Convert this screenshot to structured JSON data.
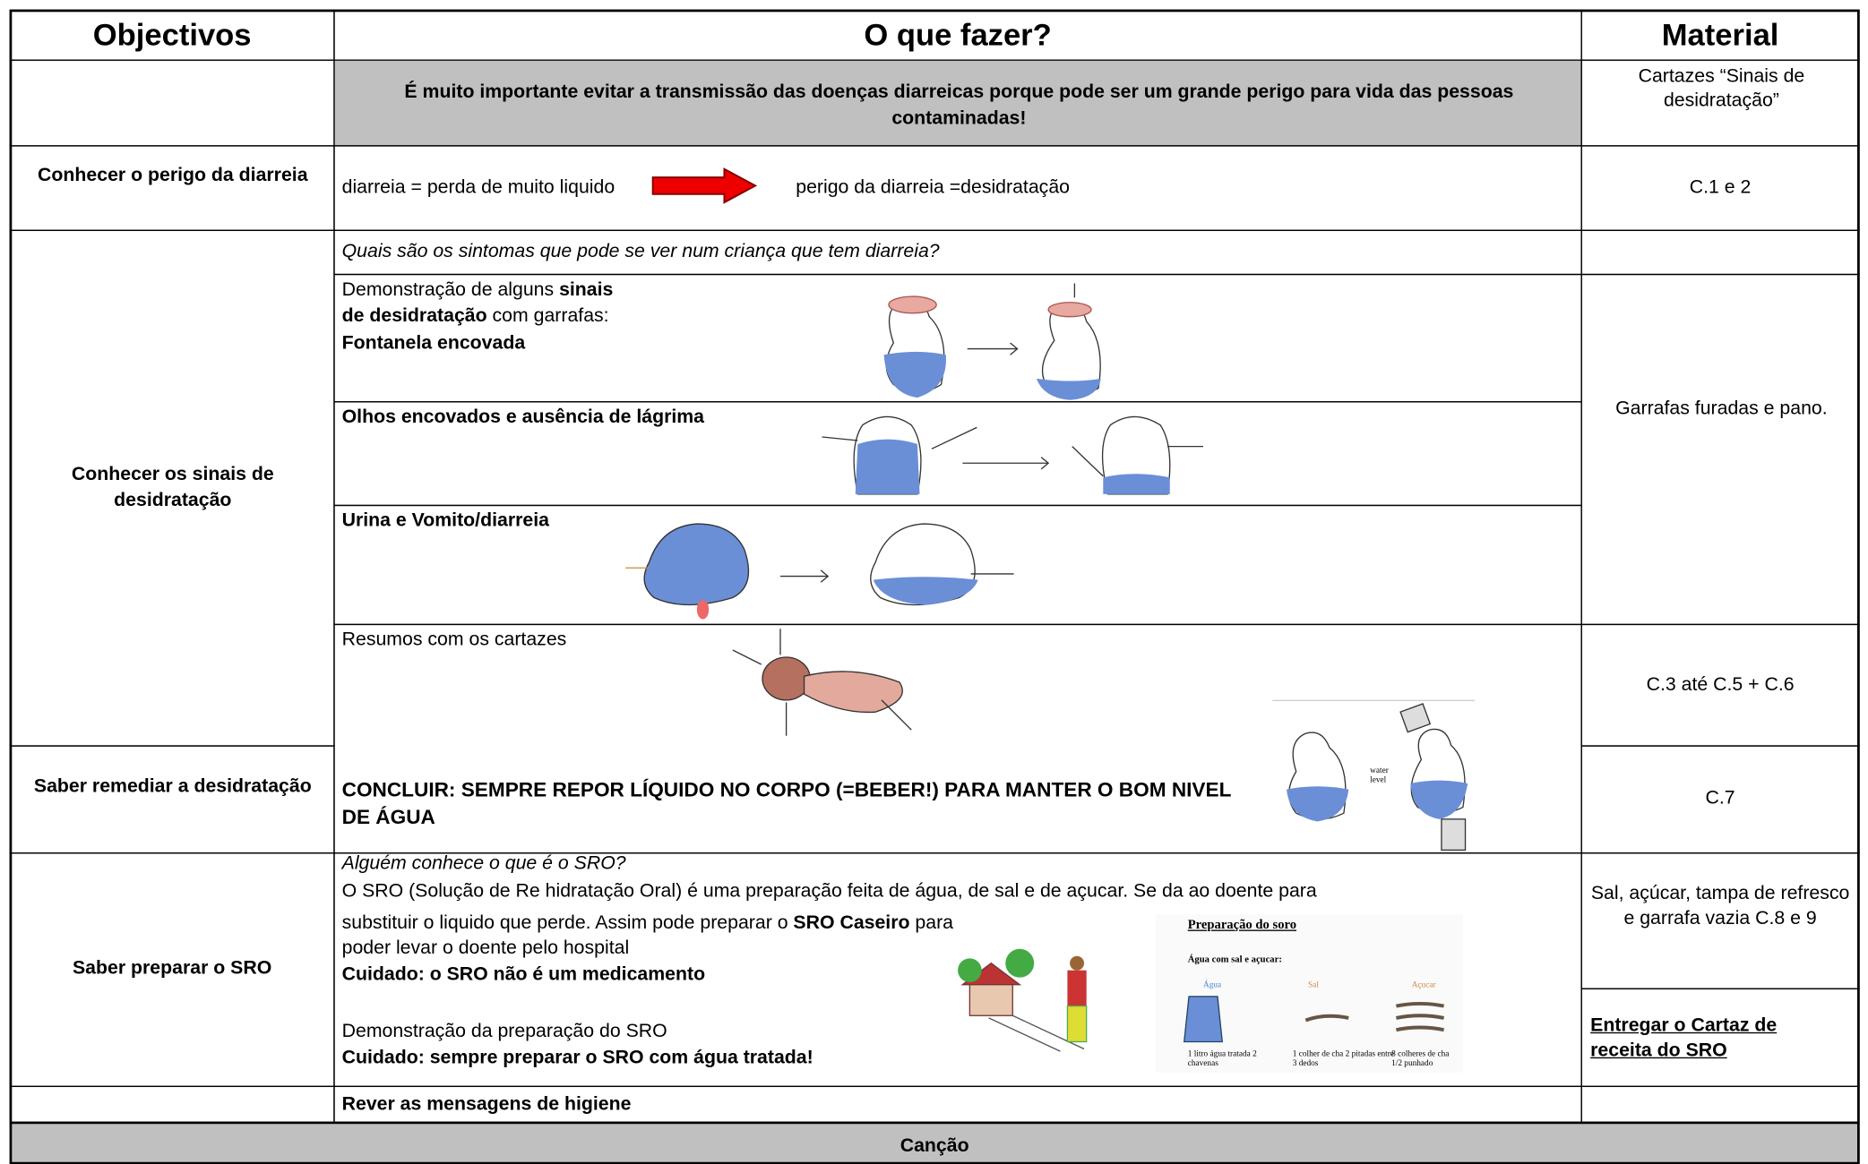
{
  "header": {
    "objectives": "Objectivos",
    "what": "O que fazer?",
    "material": "Material"
  },
  "intro": {
    "text": "É muito importante evitar a transmissão das doenças diarreicas porque pode ser um grande perigo para vida das pessoas contaminadas!",
    "material": "Cartazes “Sinais de desidratação”"
  },
  "danger": {
    "objective": "Conhecer o perigo da diarreia",
    "left": "diarreia = perda de muito liquido",
    "right": "perigo da diarreia =desidratação",
    "material": "C.1 e 2"
  },
  "signs": {
    "objective": "Conhecer os sinais de desidratação",
    "question": "Quais são os sintomas que pode se ver num criança que tem diarreia?",
    "demo": [
      "Demonstração de alguns ",
      "sinais",
      "de desidratação",
      " com garrafas:",
      "Fontanela encovada"
    ],
    "eyes": "Olhos encovados e ausência de lágrima",
    "urine": "Urina e Vomito/diarreia",
    "summary": "Resumos com os cartazes",
    "material_bottles": "Garrafas furadas e pano.",
    "material_posters": "C.3 até C.5 + C.6"
  },
  "remedy": {
    "objective": "Saber remediar a desidratação",
    "conclude": "CONCLUIR: SEMPRE REPOR LÍQUIDO NO CORPO (=BEBER!) PARA MANTER O BOM NIVEL DE ÁGUA",
    "water_label": "water level",
    "material": "C.7"
  },
  "sro": {
    "objective": "Saber preparar o SRO",
    "question": "Alguém conhece o que é o SRO?",
    "line1": "O SRO (Solução de Re hidratação Oral) é uma preparação feita de água, de sal e de açucar. Se da ao doente para",
    "line2a": "substituir o liquido que perde. Assim pode preparar o ",
    "line2b": "SRO Caseiro",
    "line2c": " para",
    "line3": "poder levar o doente pelo hospital",
    "warning1": "Cuidado: o SRO não é um medicamento",
    "demo": "Demonstração da preparação do SRO",
    "warning2": "Cuidado: sempre preparar o SRO com água tratada!",
    "poster": {
      "title": "Preparação do soro",
      "subtitle": "Água com sal e açucar:",
      "labels": [
        "Água",
        "Sal",
        "Açucar"
      ],
      "notes": [
        "1 litro água tratada 2 chavenas",
        "1 colher de cha 2 pitadas entre 3 dedos",
        "8 colheres de cha 1/2 punhado"
      ]
    },
    "material": "Sal, açúcar, tampa de refresco e garrafa vazia C.8 e 9",
    "handout": "Entregar o Cartaz de receita do SRO"
  },
  "hygiene": "Rever as mensagens de higiene",
  "song": "Canção"
}
